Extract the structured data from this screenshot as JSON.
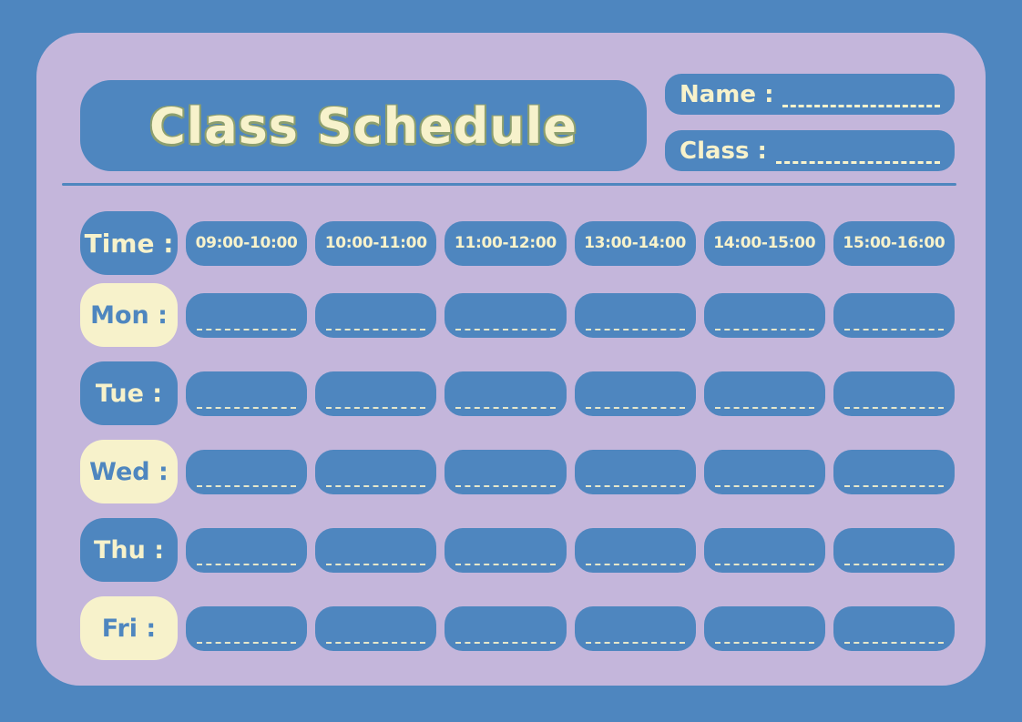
{
  "title": "Class Schedule",
  "header": {
    "name_label": "Name :",
    "class_label": "Class :"
  },
  "table": {
    "time_label": "Time :",
    "time_slots": [
      "09:00-10:00",
      "10:00-11:00",
      "11:00-12:00",
      "13:00-14:00",
      "14:00-15:00",
      "15:00-16:00"
    ],
    "days": [
      {
        "label": "Mon :",
        "style": "cream"
      },
      {
        "label": "Tue :",
        "style": "blue"
      },
      {
        "label": "Wed :",
        "style": "cream"
      },
      {
        "label": "Thu :",
        "style": "blue"
      },
      {
        "label": "Fri :",
        "style": "cream"
      }
    ]
  },
  "colors": {
    "background": "#4e86bf",
    "card": "#c4b6db",
    "box_blue": "#4e86bf",
    "cream": "#f7f2cb",
    "title_outline": "#8d9f6e"
  }
}
